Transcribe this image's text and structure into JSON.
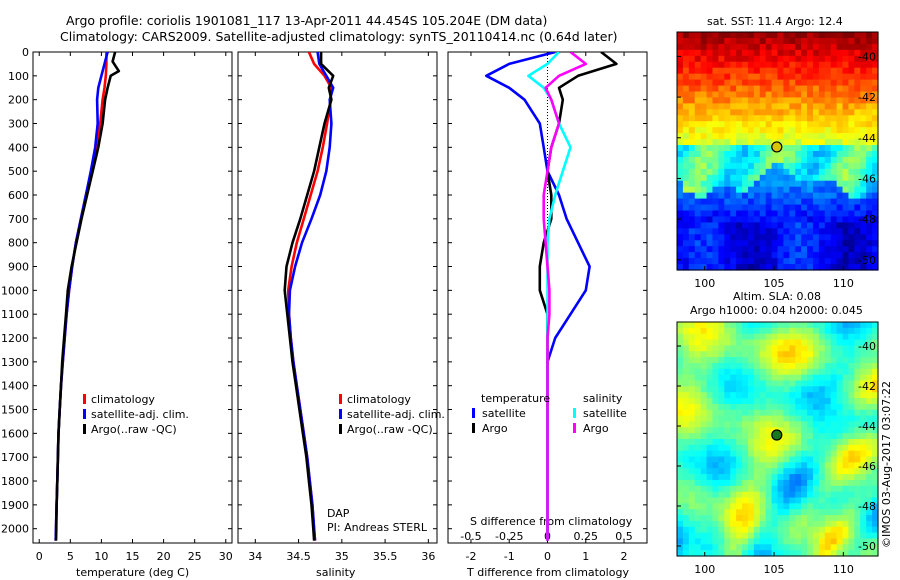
{
  "header": {
    "line1": "Argo profile: coriolis 1901081_117 13-Apr-2011 44.454S 105.204E (DM data)",
    "line2": "Climatology: CARS2009. Satellite-adjusted climatology: synTS_20110414.nc (0.64d later)"
  },
  "watermark": "©IMOS 03-Aug-2017 03:07:22",
  "colors": {
    "climatology": "#ff0000",
    "satellite": "#0000ff",
    "argo": "#000000",
    "s_satellite": "#00ffff",
    "s_argo": "#ff00ff"
  },
  "chart_data": [
    {
      "type": "line",
      "xlabel": "temperature (deg C)",
      "ylabel": "",
      "xlim": [
        -1,
        31
      ],
      "ylim": [
        2060,
        0
      ],
      "xticks": [
        "0",
        "5",
        "10",
        "15",
        "20",
        "25",
        "30"
      ],
      "yticks": [
        "0",
        "100",
        "200",
        "300",
        "400",
        "500",
        "600",
        "700",
        "800",
        "900",
        "1000",
        "1100",
        "1200",
        "1300",
        "1400",
        "1500",
        "1600",
        "1700",
        "1800",
        "1900",
        "2000"
      ],
      "legend": [
        "climatology",
        "satellite-adj. clim.",
        "Argo(..raw -QC)"
      ],
      "legend_position": "lower-right",
      "series": [
        {
          "name": "climatology",
          "points": [
            [
              10.8,
              0
            ],
            [
              10.8,
              50
            ],
            [
              10.7,
              100
            ],
            [
              10.5,
              150
            ],
            [
              10.2,
              200
            ],
            [
              9.8,
              300
            ],
            [
              9.2,
              400
            ],
            [
              8.4,
              500
            ],
            [
              7.5,
              600
            ],
            [
              6.7,
              700
            ],
            [
              5.9,
              800
            ],
            [
              5.3,
              900
            ],
            [
              4.8,
              1000
            ],
            [
              4.4,
              1100
            ],
            [
              4.1,
              1200
            ],
            [
              3.8,
              1300
            ],
            [
              3.5,
              1400
            ],
            [
              3.3,
              1500
            ],
            [
              3.1,
              1600
            ],
            [
              3.0,
              1700
            ],
            [
              2.9,
              1800
            ],
            [
              2.8,
              1900
            ],
            [
              2.7,
              2000
            ],
            [
              2.65,
              2050
            ]
          ]
        },
        {
          "name": "satellite-adj. clim.",
          "points": [
            [
              11.0,
              0
            ],
            [
              10.5,
              50
            ],
            [
              10.0,
              100
            ],
            [
              9.5,
              150
            ],
            [
              9.3,
              200
            ],
            [
              9.4,
              300
            ],
            [
              9.0,
              400
            ],
            [
              8.3,
              500
            ],
            [
              7.5,
              600
            ],
            [
              6.7,
              700
            ],
            [
              5.9,
              800
            ],
            [
              5.3,
              900
            ],
            [
              4.8,
              1000
            ],
            [
              4.4,
              1100
            ],
            [
              4.1,
              1200
            ],
            [
              3.8,
              1300
            ],
            [
              3.5,
              1400
            ],
            [
              3.3,
              1500
            ],
            [
              3.1,
              1600
            ],
            [
              3.0,
              1700
            ],
            [
              2.9,
              1800
            ],
            [
              2.8,
              1900
            ],
            [
              2.7,
              2000
            ],
            [
              2.65,
              2050
            ]
          ]
        },
        {
          "name": "Argo(..raw -QC)",
          "points": [
            [
              12.2,
              0
            ],
            [
              11.8,
              40
            ],
            [
              12.8,
              80
            ],
            [
              11.5,
              100
            ],
            [
              11.0,
              150
            ],
            [
              10.6,
              200
            ],
            [
              10.2,
              300
            ],
            [
              9.5,
              400
            ],
            [
              8.6,
              500
            ],
            [
              7.7,
              600
            ],
            [
              6.8,
              700
            ],
            [
              6.0,
              800
            ],
            [
              5.2,
              900
            ],
            [
              4.6,
              1000
            ],
            [
              4.3,
              1100
            ],
            [
              4.0,
              1200
            ],
            [
              3.7,
              1300
            ],
            [
              3.5,
              1400
            ],
            [
              3.3,
              1500
            ],
            [
              3.1,
              1600
            ],
            [
              3.0,
              1700
            ],
            [
              2.9,
              1800
            ],
            [
              2.8,
              1900
            ],
            [
              2.75,
              2000
            ],
            [
              2.7,
              2050
            ]
          ]
        }
      ]
    },
    {
      "type": "line",
      "xlabel": "salinity",
      "xlim": [
        33.8,
        36.1
      ],
      "ylim": [
        2060,
        0
      ],
      "xticks": [
        "34",
        "34.5",
        "35",
        "35.5",
        "36"
      ],
      "legend": [
        "climatology",
        "satellite-adj. clim.",
        "Argo(..raw -QC)"
      ],
      "legend_position": "lower-right",
      "annotation": [
        "DAP",
        "PI: Andreas STERL"
      ],
      "series": [
        {
          "name": "climatology",
          "points": [
            [
              34.62,
              0
            ],
            [
              34.68,
              50
            ],
            [
              34.8,
              100
            ],
            [
              34.88,
              150
            ],
            [
              34.87,
              200
            ],
            [
              34.83,
              300
            ],
            [
              34.78,
              400
            ],
            [
              34.72,
              500
            ],
            [
              34.64,
              600
            ],
            [
              34.56,
              700
            ],
            [
              34.48,
              800
            ],
            [
              34.42,
              900
            ],
            [
              34.38,
              1000
            ],
            [
              34.39,
              1100
            ],
            [
              34.41,
              1200
            ],
            [
              34.44,
              1300
            ],
            [
              34.48,
              1400
            ],
            [
              34.52,
              1500
            ],
            [
              34.56,
              1600
            ],
            [
              34.6,
              1700
            ],
            [
              34.63,
              1800
            ],
            [
              34.66,
              1900
            ],
            [
              34.68,
              2000
            ],
            [
              34.69,
              2050
            ]
          ]
        },
        {
          "name": "satellite-adj. clim.",
          "points": [
            [
              34.72,
              0
            ],
            [
              34.74,
              50
            ],
            [
              34.82,
              100
            ],
            [
              34.9,
              150
            ],
            [
              34.86,
              200
            ],
            [
              34.88,
              300
            ],
            [
              34.86,
              400
            ],
            [
              34.82,
              500
            ],
            [
              34.75,
              600
            ],
            [
              34.65,
              700
            ],
            [
              34.54,
              800
            ],
            [
              34.46,
              900
            ],
            [
              34.4,
              1000
            ],
            [
              34.39,
              1100
            ],
            [
              34.41,
              1200
            ],
            [
              34.44,
              1300
            ],
            [
              34.48,
              1400
            ],
            [
              34.52,
              1500
            ],
            [
              34.56,
              1600
            ],
            [
              34.6,
              1700
            ],
            [
              34.63,
              1800
            ],
            [
              34.66,
              1900
            ],
            [
              34.68,
              2000
            ],
            [
              34.69,
              2050
            ]
          ]
        },
        {
          "name": "Argo(..raw -QC)",
          "points": [
            [
              34.76,
              0
            ],
            [
              34.76,
              50
            ],
            [
              34.9,
              100
            ],
            [
              34.85,
              150
            ],
            [
              34.88,
              200
            ],
            [
              34.8,
              300
            ],
            [
              34.74,
              400
            ],
            [
              34.68,
              500
            ],
            [
              34.6,
              600
            ],
            [
              34.52,
              700
            ],
            [
              34.43,
              800
            ],
            [
              34.36,
              900
            ],
            [
              34.34,
              1000
            ],
            [
              34.37,
              1100
            ],
            [
              34.4,
              1200
            ],
            [
              34.43,
              1300
            ],
            [
              34.47,
              1400
            ],
            [
              34.51,
              1500
            ],
            [
              34.55,
              1600
            ],
            [
              34.59,
              1700
            ],
            [
              34.62,
              1800
            ],
            [
              34.65,
              1900
            ],
            [
              34.67,
              2000
            ],
            [
              34.68,
              2050
            ]
          ]
        }
      ]
    },
    {
      "type": "line",
      "xlabel": "T difference from climatology",
      "xlabel_top": "S difference from climatology",
      "xlim": [
        -2.6,
        2.6
      ],
      "ylim": [
        2060,
        0
      ],
      "xticks": [
        "-2",
        "-1",
        "0",
        "1",
        "2"
      ],
      "xticks_top": [
        "-0.5",
        "-0.25",
        "0",
        "0.25",
        "0.5"
      ],
      "legend_groups": {
        "temperature": [
          "satellite",
          "Argo"
        ],
        "salinity": [
          "satellite",
          "Argo"
        ]
      },
      "legend_position": "lower-center",
      "series": [
        {
          "name": "temperature satellite",
          "points": [
            [
              0.2,
              0
            ],
            [
              -1.0,
              50
            ],
            [
              -1.6,
              100
            ],
            [
              -1.0,
              150
            ],
            [
              -0.6,
              200
            ],
            [
              -0.2,
              300
            ],
            [
              -0.1,
              400
            ],
            [
              0,
              500
            ],
            [
              0.3,
              600
            ],
            [
              0.5,
              700
            ],
            [
              0.8,
              800
            ],
            [
              1.1,
              900
            ],
            [
              1.0,
              1000
            ],
            [
              0.6,
              1100
            ],
            [
              0.2,
              1200
            ],
            [
              0,
              1300
            ],
            [
              0,
              1500
            ],
            [
              0,
              2050
            ]
          ]
        },
        {
          "name": "temperature Argo",
          "points": [
            [
              1.4,
              0
            ],
            [
              1.8,
              50
            ],
            [
              0.8,
              100
            ],
            [
              0.3,
              150
            ],
            [
              0.4,
              200
            ],
            [
              0.3,
              300
            ],
            [
              0.1,
              400
            ],
            [
              0,
              500
            ],
            [
              0.1,
              600
            ],
            [
              0.1,
              700
            ],
            [
              -0.1,
              800
            ],
            [
              -0.2,
              900
            ],
            [
              -0.2,
              1000
            ],
            [
              0,
              1100
            ],
            [
              0,
              1200
            ],
            [
              0,
              1500
            ],
            [
              0,
              2050
            ]
          ]
        },
        {
          "name": "salinity satellite",
          "points": [
            [
              0.3,
              0
            ],
            [
              0,
              50
            ],
            [
              -0.5,
              100
            ],
            [
              -0.1,
              150
            ],
            [
              0.1,
              200
            ],
            [
              0.3,
              300
            ],
            [
              0.6,
              400
            ],
            [
              0.4,
              500
            ],
            [
              0.2,
              600
            ],
            [
              0.05,
              700
            ],
            [
              0,
              800
            ],
            [
              0,
              1500
            ],
            [
              0,
              2050
            ]
          ]
        },
        {
          "name": "salinity Argo",
          "points": [
            [
              0.6,
              0
            ],
            [
              1.0,
              50
            ],
            [
              0.3,
              100
            ],
            [
              -0.05,
              150
            ],
            [
              0.1,
              200
            ],
            [
              0.3,
              300
            ],
            [
              0.1,
              400
            ],
            [
              0,
              500
            ],
            [
              -0.1,
              600
            ],
            [
              -0.1,
              700
            ],
            [
              -0.05,
              800
            ],
            [
              0,
              900
            ],
            [
              0.05,
              1000
            ],
            [
              0.05,
              1100
            ],
            [
              0,
              1200
            ],
            [
              0,
              1500
            ],
            [
              0,
              2050
            ]
          ]
        }
      ]
    },
    {
      "type": "heatmap",
      "title": "sat. SST: 11.4 Argo: 12.4",
      "xticks": [
        "100",
        "105",
        "110"
      ],
      "yticks": [
        "-40",
        "-42",
        "-44",
        "-46",
        "-48",
        "-50"
      ],
      "xlim": [
        98,
        112.5
      ],
      "ylim": [
        -50.5,
        -38.8
      ],
      "marker": [
        105.2,
        -44.45
      ]
    },
    {
      "type": "heatmap",
      "title": "Altim. SLA: 0.08",
      "subtitle": "Argo h1000: 0.04 h2000: 0.045",
      "xticks": [
        "100",
        "105",
        "110"
      ],
      "yticks": [
        "-40",
        "-42",
        "-44",
        "-46",
        "-48",
        "-50"
      ],
      "xlim": [
        98,
        112.5
      ],
      "ylim": [
        -50.5,
        -38.8
      ],
      "marker": [
        105.2,
        -44.45
      ]
    }
  ]
}
